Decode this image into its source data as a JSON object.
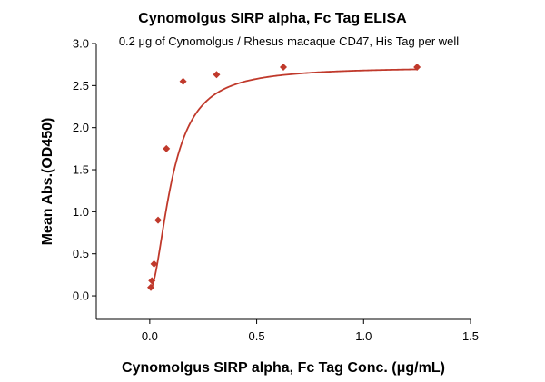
{
  "chart_data": {
    "type": "scatter",
    "title": "Cynomolgus SIRP alpha, Fc Tag ELISA",
    "subtitle": "0.2 μg of Cynomolgus / Rhesus macaque CD47, His Tag per well",
    "xlabel": "Cynomolgus SIRP alpha, Fc Tag Conc. (μg/mL)",
    "ylabel": "Mean Abs.(OD450)",
    "xlim": [
      -0.25,
      1.5
    ],
    "ylim": [
      -0.28,
      3.0
    ],
    "x_ticks": [
      "0.0",
      "0.5",
      "1.0",
      "1.5"
    ],
    "y_ticks": [
      "0.0",
      "0.5",
      "1.0",
      "1.5",
      "2.0",
      "2.5",
      "3.0"
    ],
    "grid": false,
    "legend": "none",
    "series": [
      {
        "marker": "diamond",
        "color": "#c0392b",
        "x": [
          0.005,
          0.01,
          0.02,
          0.039,
          0.078,
          0.156,
          0.3125,
          0.625,
          1.25
        ],
        "y": [
          0.1,
          0.18,
          0.38,
          0.9,
          1.75,
          2.55,
          2.63,
          2.72,
          2.72
        ]
      }
    ],
    "fit": {
      "type": "4PL",
      "color": "#c0392b",
      "bottom": 0.07,
      "top": 2.72,
      "ec50": 0.105,
      "hill": 1.85
    }
  }
}
